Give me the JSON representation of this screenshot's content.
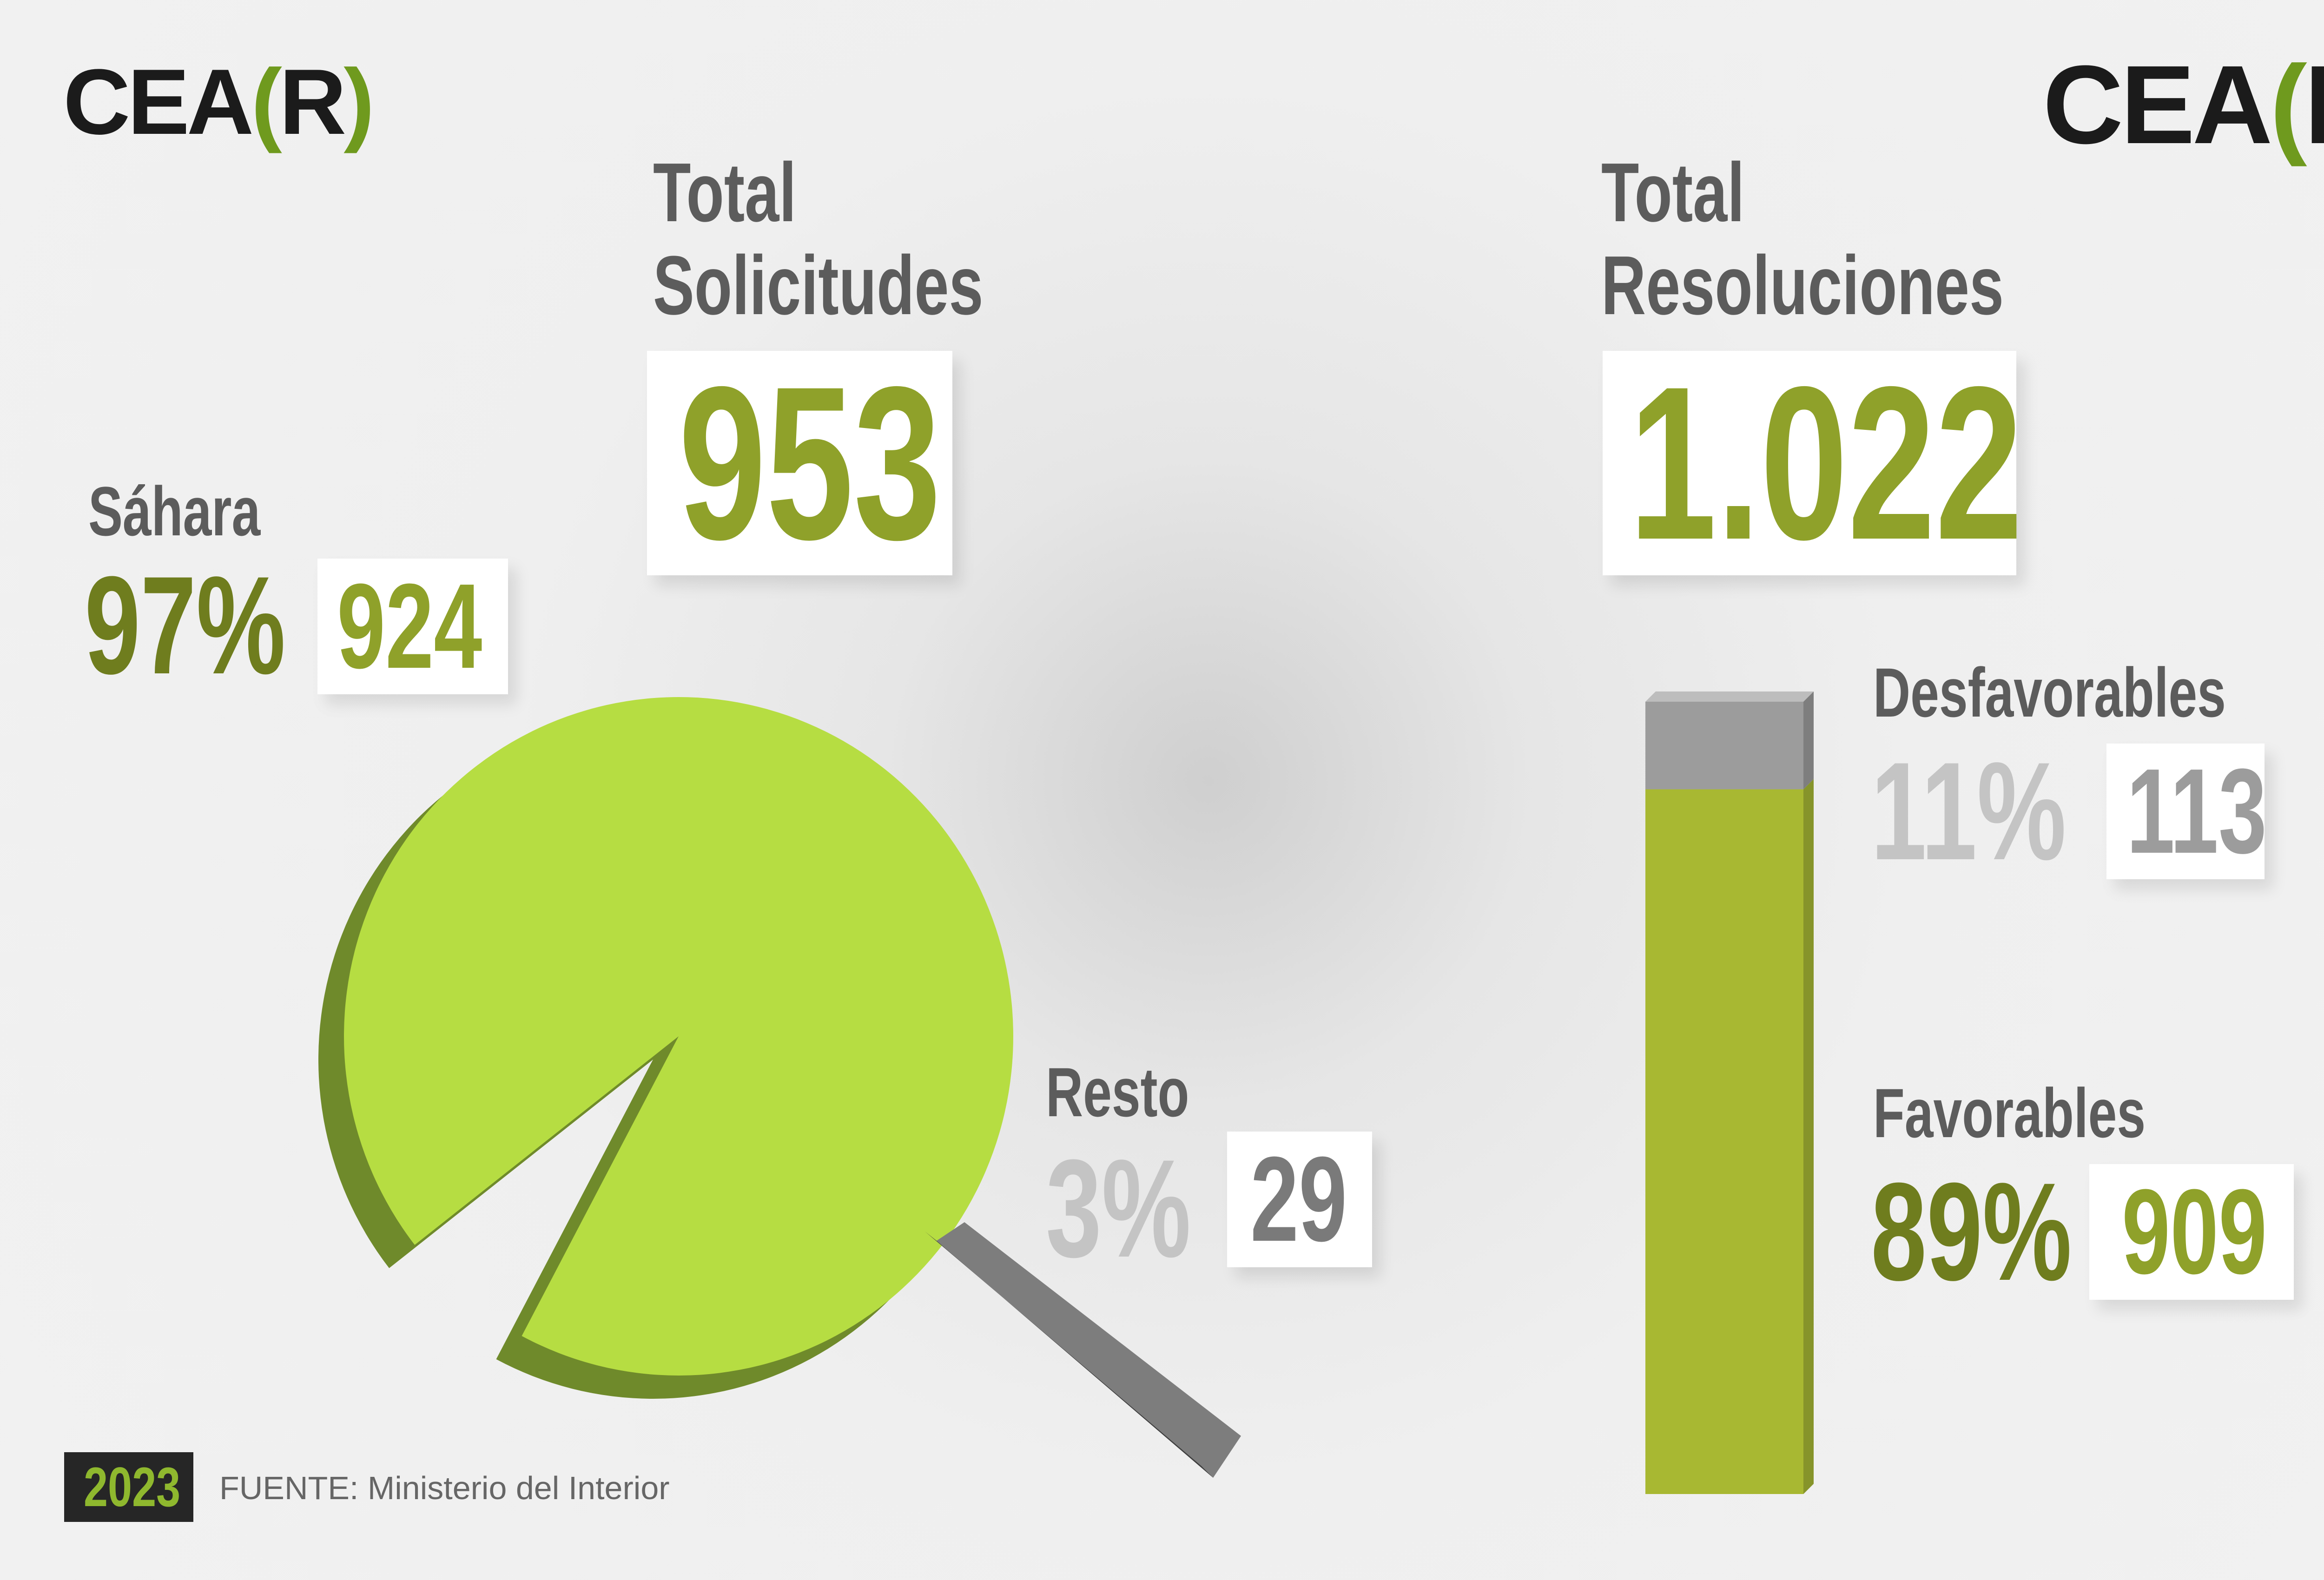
{
  "logos": {
    "left": {
      "pre": "CEA",
      "open": "(",
      "mid": "R",
      "close": ")"
    },
    "right": {
      "pre": "CEA",
      "open": "(",
      "mid": "R",
      "close": ")"
    }
  },
  "solicitudes": {
    "title_line1": "Total",
    "title_line2": "Solicitudes",
    "total": "953"
  },
  "resoluciones": {
    "title_line1": "Total",
    "title_line2": "Resoluciones",
    "total": "1.022"
  },
  "sahara": {
    "label": "Sáhara",
    "pct": "97%",
    "count": "924"
  },
  "resto": {
    "label": "Resto",
    "pct": "3%",
    "count": "29"
  },
  "desfavorables": {
    "label": "Desfavorables",
    "pct": "11%",
    "count": "113"
  },
  "favorables": {
    "label": "Favorables",
    "pct": "89%",
    "count": "909"
  },
  "footer": {
    "year": "2023",
    "source": "FUENTE: Ministerio del Interior"
  },
  "colors": {
    "lime": "#b6dd42",
    "olive": "#8fa12a",
    "dark_olive": "#6f7d1e",
    "bar_green": "#a8b832",
    "grey": "#9c9c9c",
    "light_grey": "#c4c4c4",
    "dark_grey": "#5c5c5c"
  },
  "chart_data": [
    {
      "type": "pie",
      "categories": [
        "Sáhara",
        "Resto"
      ],
      "values": [
        924,
        29
      ],
      "percentages": [
        97,
        3
      ],
      "title": "Total Solicitudes",
      "total": 953
    },
    {
      "type": "bar",
      "stacked": true,
      "categories": [
        "Favorables",
        "Desfavorables"
      ],
      "values": [
        909,
        113
      ],
      "percentages": [
        89,
        11
      ],
      "title": "Total Resoluciones",
      "total": 1022
    }
  ]
}
